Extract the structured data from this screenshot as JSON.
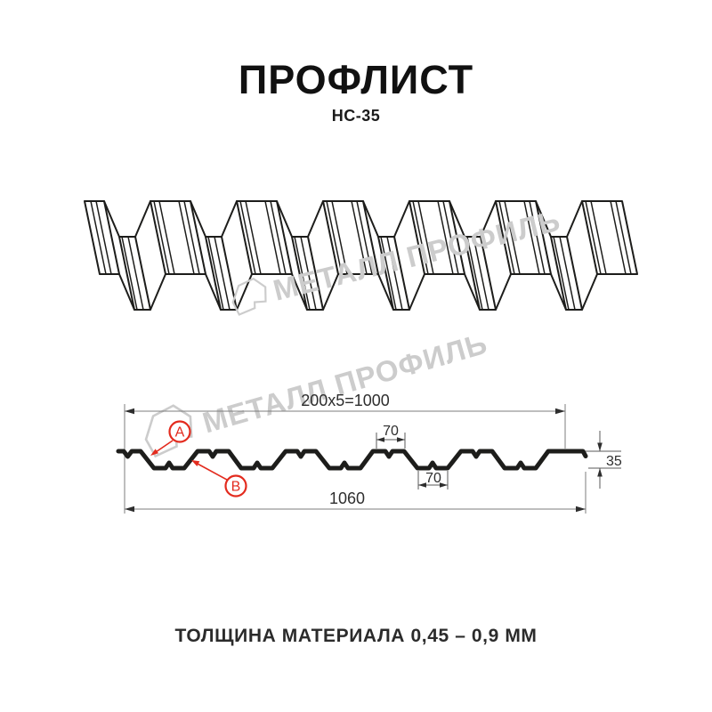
{
  "header": {
    "title": "ПРОФЛИСТ",
    "subtitle": "НС-35"
  },
  "watermark": {
    "brand": "МЕТАЛЛ ПРОФИЛЬ",
    "color": "#cccccc"
  },
  "cross_section": {
    "dim_coverage_width": "200x5=1000",
    "dim_rib_top_width": "70",
    "dim_rib_bottom_width": "70",
    "dim_profile_height": "35",
    "dim_overall_width": "1060",
    "label_a": "A",
    "label_b": "B",
    "annotation_color": "#e32b1e",
    "line_color": "#1d1d1b"
  },
  "footer": {
    "thickness_note": "ТОЛЩИНА МАТЕРИАЛА 0,45 – 0,9 ММ"
  }
}
